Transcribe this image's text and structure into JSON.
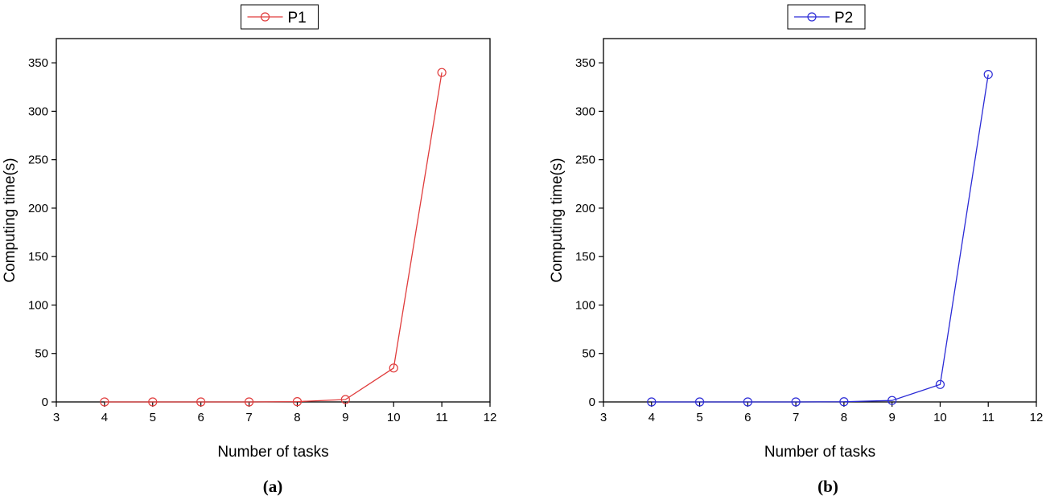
{
  "chart_data": [
    {
      "type": "line",
      "panel_label": "(a)",
      "xlabel": "Number of tasks",
      "ylabel": "Computing time(s)",
      "xlim": [
        3,
        12
      ],
      "ylim": [
        0,
        375
      ],
      "xticks": [
        3,
        4,
        5,
        6,
        7,
        8,
        9,
        10,
        11,
        12
      ],
      "yticks": [
        0,
        50,
        100,
        150,
        200,
        250,
        300,
        350
      ],
      "grid": false,
      "legend_position": "top-center",
      "series": [
        {
          "name": "P1",
          "color": "#e03c3c",
          "marker": "open-circle",
          "x": [
            4,
            5,
            6,
            7,
            8,
            9,
            10,
            11
          ],
          "y": [
            0,
            0,
            0,
            0,
            0.3,
            2.5,
            35,
            340
          ]
        }
      ]
    },
    {
      "type": "line",
      "panel_label": "(b)",
      "xlabel": "Number of tasks",
      "ylabel": "Computing time(s)",
      "xlim": [
        3,
        12
      ],
      "ylim": [
        0,
        375
      ],
      "xticks": [
        3,
        4,
        5,
        6,
        7,
        8,
        9,
        10,
        11,
        12
      ],
      "yticks": [
        0,
        50,
        100,
        150,
        200,
        250,
        300,
        350
      ],
      "grid": false,
      "legend_position": "top-center",
      "series": [
        {
          "name": "P2",
          "color": "#2b2bd6",
          "marker": "open-circle",
          "x": [
            4,
            5,
            6,
            7,
            8,
            9,
            10,
            11
          ],
          "y": [
            0,
            0,
            0,
            0,
            0.2,
            1.5,
            18,
            338
          ]
        }
      ]
    }
  ]
}
